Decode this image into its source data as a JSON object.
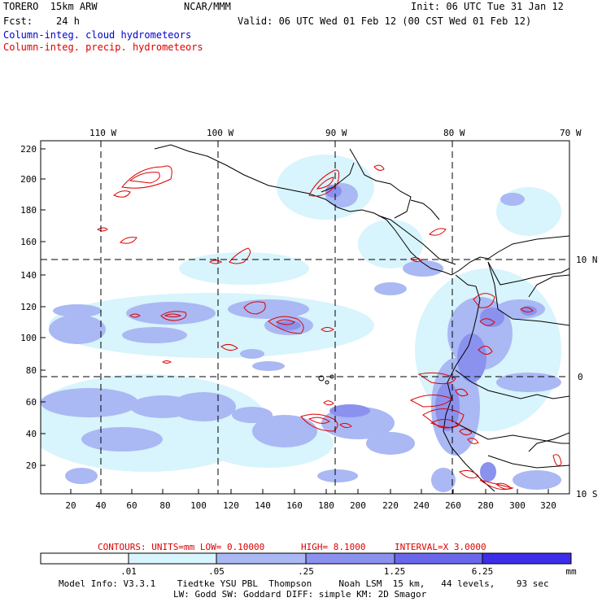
{
  "header": {
    "model": "TORERO  15km ARW",
    "center": "NCAR/MMM",
    "init": "Init: 06 UTC Tue 31 Jan 12",
    "fcst": "Fcst:    24 h",
    "valid": "Valid: 06 UTC Wed 01 Feb 12 (00 CST Wed 01 Feb 12)",
    "field1": "Column-integ. cloud hydrometeors",
    "field2": "Column-integ. precip. hydrometeors"
  },
  "colors": {
    "field1": "#0000cc",
    "field2": "#dd0000",
    "contour": "#dd0000",
    "coast": "#000000",
    "shade": [
      "#ffffff",
      "#d8f4fc",
      "#aab8f4",
      "#8a92ee",
      "#6a68ea",
      "#3c2ee8"
    ]
  },
  "map": {
    "lon_labels": [
      "110 W",
      "100 W",
      "90 W",
      "80 W",
      "70 W"
    ],
    "lat_labels": [
      "10 N",
      "0",
      "10 S"
    ],
    "y_ticks": [
      "220",
      "200",
      "180",
      "160",
      "140",
      "120",
      "100",
      "80",
      "60",
      "40",
      "20"
    ],
    "x_ticks": [
      "20",
      "40",
      "60",
      "80",
      "100",
      "120",
      "140",
      "160",
      "180",
      "200",
      "220",
      "240",
      "260",
      "280",
      "300",
      "320"
    ]
  },
  "contour_info": {
    "label": "CONTOURS:  UNITS=mm  LOW= 0.10000",
    "high": "HIGH=  8.1000",
    "interval": "INTERVAL=X  3.0000"
  },
  "legend": {
    "values": [
      ".01",
      ".05",
      ".25",
      "1.25",
      "6.25"
    ],
    "unit": "mm"
  },
  "footer": {
    "line1": "Model Info: V3.3.1    Tiedtke YSU PBL  Thompson     Noah LSM  15 km,   44 levels,    93 sec",
    "line2": "LW: Godd SW: Goddard DIFF: simple KM: 2D Smagor"
  }
}
